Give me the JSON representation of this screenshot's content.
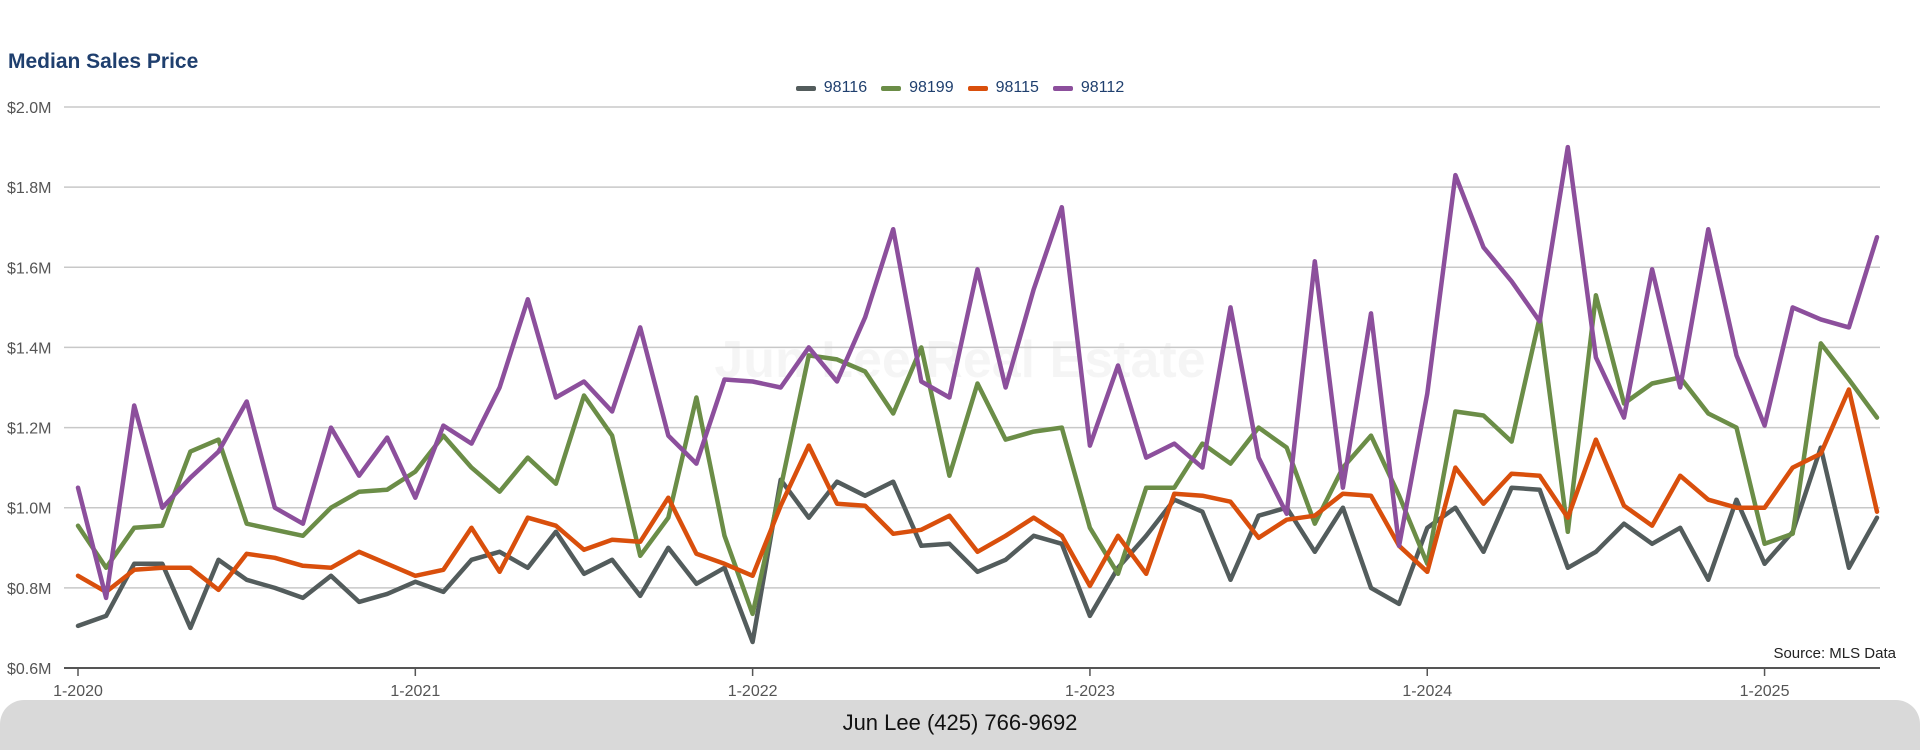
{
  "chart_data": {
    "type": "line",
    "title": "Median Sales Price",
    "ylim": [
      0.6,
      2.0
    ],
    "y_ticks": [
      {
        "value": 0.6,
        "label": "$0.6M"
      },
      {
        "value": 0.8,
        "label": "$0.8M"
      },
      {
        "value": 1.0,
        "label": "$1.0M"
      },
      {
        "value": 1.2,
        "label": "$1.2M"
      },
      {
        "value": 1.4,
        "label": "$1.4M"
      },
      {
        "value": 1.6,
        "label": "$1.6M"
      },
      {
        "value": 1.8,
        "label": "$1.8M"
      },
      {
        "value": 2.0,
        "label": "$2.0M"
      }
    ],
    "x_ticks": [
      {
        "index": 0,
        "label": "1-2020"
      },
      {
        "index": 12,
        "label": "1-2021"
      },
      {
        "index": 24,
        "label": "1-2022"
      },
      {
        "index": 36,
        "label": "1-2023"
      },
      {
        "index": 48,
        "label": "1-2024"
      },
      {
        "index": 60,
        "label": "1-2025"
      }
    ],
    "x_start": "1-2020",
    "legend_position": "top-center",
    "grid": true,
    "series": [
      {
        "name": "98116",
        "color": "#535c5c",
        "values": [
          0.705,
          0.73,
          0.86,
          0.86,
          0.7,
          0.87,
          0.82,
          0.8,
          0.775,
          0.83,
          0.765,
          0.785,
          0.815,
          0.79,
          0.87,
          0.89,
          0.85,
          0.94,
          0.835,
          0.87,
          0.78,
          0.9,
          0.81,
          0.85,
          0.665,
          1.07,
          0.975,
          1.065,
          1.03,
          1.065,
          0.905,
          0.91,
          0.84,
          0.87,
          0.93,
          0.91,
          0.73,
          0.85,
          0.93,
          1.02,
          0.99,
          0.82,
          0.98,
          1.0,
          0.89,
          1.0,
          0.8,
          0.76,
          0.95,
          1.0,
          0.89,
          1.05,
          1.045,
          0.85,
          0.89,
          0.96,
          0.91,
          0.95,
          0.82,
          1.02,
          0.86,
          0.94,
          1.15,
          0.85,
          0.975
        ]
      },
      {
        "name": "98199",
        "color": "#6b8d47",
        "values": [
          0.955,
          0.85,
          0.95,
          0.955,
          1.14,
          1.17,
          0.96,
          0.945,
          0.93,
          1.0,
          1.04,
          1.045,
          1.09,
          1.18,
          1.1,
          1.04,
          1.125,
          1.06,
          1.28,
          1.18,
          0.88,
          0.975,
          1.275,
          0.93,
          0.735,
          1.05,
          1.38,
          1.37,
          1.34,
          1.235,
          1.4,
          1.08,
          1.31,
          1.17,
          1.19,
          1.2,
          0.95,
          0.835,
          1.05,
          1.05,
          1.16,
          1.11,
          1.2,
          1.15,
          0.96,
          1.1,
          1.18,
          1.03,
          0.86,
          1.24,
          1.23,
          1.165,
          1.475,
          0.94,
          1.53,
          1.26,
          1.31,
          1.325,
          1.235,
          1.2,
          0.91,
          0.935,
          1.41,
          1.32,
          1.225
        ]
      },
      {
        "name": "98115",
        "color": "#d94f0c",
        "values": [
          0.83,
          0.79,
          0.845,
          0.85,
          0.85,
          0.795,
          0.885,
          0.875,
          0.855,
          0.85,
          0.89,
          0.86,
          0.83,
          0.845,
          0.95,
          0.84,
          0.975,
          0.955,
          0.895,
          0.92,
          0.915,
          1.025,
          0.885,
          0.86,
          0.83,
          1.005,
          1.155,
          1.01,
          1.005,
          0.935,
          0.945,
          0.98,
          0.89,
          0.93,
          0.975,
          0.93,
          0.805,
          0.93,
          0.835,
          1.035,
          1.03,
          1.015,
          0.925,
          0.97,
          0.98,
          1.035,
          1.03,
          0.905,
          0.84,
          1.1,
          1.01,
          1.085,
          1.08,
          0.975,
          1.17,
          1.005,
          0.955,
          1.08,
          1.02,
          1.0,
          1.0,
          1.1,
          1.135,
          1.295,
          0.99
        ]
      },
      {
        "name": "98112",
        "color": "#8c4f9c",
        "values": [
          1.05,
          0.775,
          1.255,
          1.0,
          1.075,
          1.14,
          1.265,
          1.0,
          0.96,
          1.2,
          1.08,
          1.175,
          1.025,
          1.205,
          1.16,
          1.3,
          1.52,
          1.275,
          1.315,
          1.24,
          1.45,
          1.18,
          1.11,
          1.32,
          1.315,
          1.3,
          1.4,
          1.315,
          1.475,
          1.695,
          1.315,
          1.275,
          1.595,
          1.3,
          1.545,
          1.75,
          1.155,
          1.355,
          1.125,
          1.16,
          1.1,
          1.5,
          1.125,
          0.985,
          1.615,
          1.05,
          1.485,
          0.905,
          1.285,
          1.83,
          1.65,
          1.565,
          1.465,
          1.9,
          1.375,
          1.225,
          1.595,
          1.3,
          1.695,
          1.38,
          1.205,
          1.5,
          1.47,
          1.45,
          1.675
        ]
      }
    ]
  },
  "watermark": "Jun Lee Real Estate",
  "source_note": "Source: MLS Data",
  "footer": {
    "contact": "Jun Lee (425) 766-9692"
  }
}
